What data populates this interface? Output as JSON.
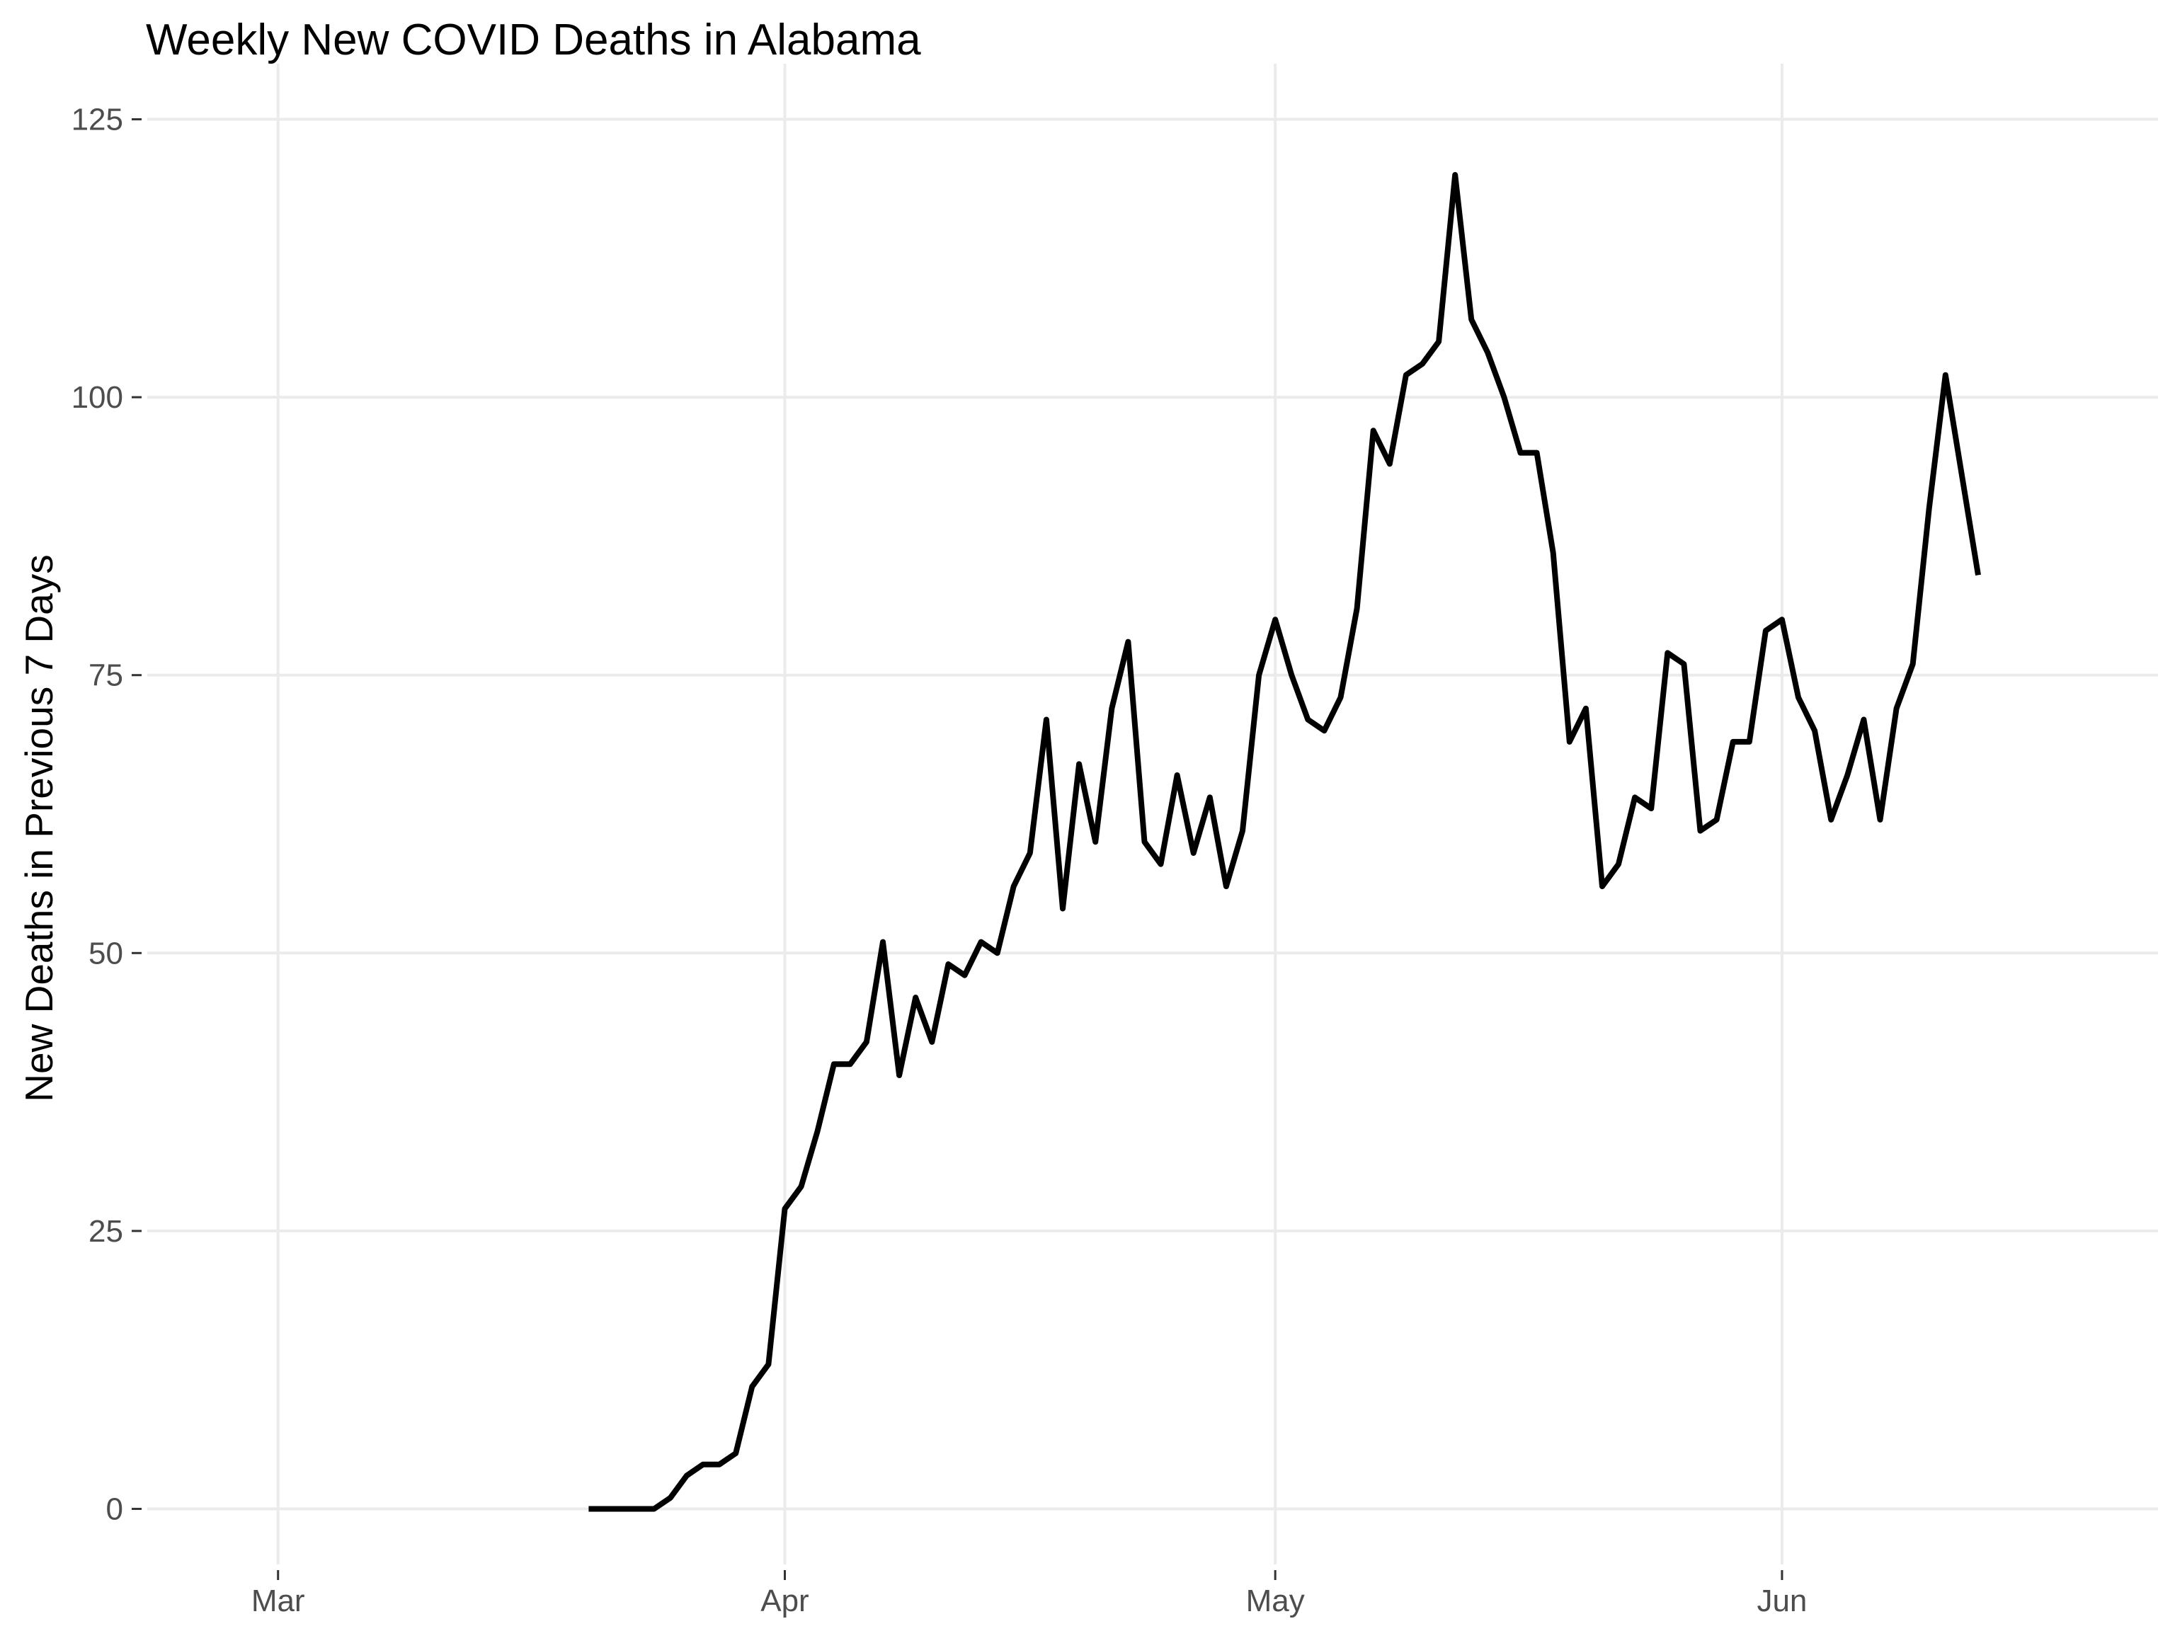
{
  "chart_data": {
    "type": "line",
    "title": "Weekly New COVID Deaths in Alabama",
    "xlabel": "",
    "ylabel": "New Deaths in Previous 7 Days",
    "x_axis_type": "date",
    "xlim": [
      "2020-02-22",
      "2020-06-24"
    ],
    "ylim": [
      -5,
      130
    ],
    "x_ticks": [
      {
        "date": "2020-03-01",
        "label": "Mar"
      },
      {
        "date": "2020-04-01",
        "label": "Apr"
      },
      {
        "date": "2020-05-01",
        "label": "May"
      },
      {
        "date": "2020-06-01",
        "label": "Jun"
      }
    ],
    "y_ticks": [
      0,
      25,
      50,
      75,
      100,
      125
    ],
    "grid": true,
    "legend": "none",
    "line_color": "#000000",
    "gridline_color": "#ebebeb",
    "series": [
      {
        "x": [
          "2020-03-20",
          "2020-03-21",
          "2020-03-22",
          "2020-03-23",
          "2020-03-24",
          "2020-03-25",
          "2020-03-26",
          "2020-03-27",
          "2020-03-28",
          "2020-03-29",
          "2020-03-30",
          "2020-03-31",
          "2020-04-01",
          "2020-04-02",
          "2020-04-03",
          "2020-04-04",
          "2020-04-05",
          "2020-04-06",
          "2020-04-07",
          "2020-04-08",
          "2020-04-09",
          "2020-04-10",
          "2020-04-11",
          "2020-04-12",
          "2020-04-13",
          "2020-04-14",
          "2020-04-15",
          "2020-04-16",
          "2020-04-17",
          "2020-04-18",
          "2020-04-19",
          "2020-04-20",
          "2020-04-21",
          "2020-04-22",
          "2020-04-23",
          "2020-04-24",
          "2020-04-25",
          "2020-04-26",
          "2020-04-27",
          "2020-04-28",
          "2020-04-29",
          "2020-04-30",
          "2020-05-01",
          "2020-05-02",
          "2020-05-03",
          "2020-05-04",
          "2020-05-05",
          "2020-05-06",
          "2020-05-07",
          "2020-05-08",
          "2020-05-09",
          "2020-05-10",
          "2020-05-11",
          "2020-05-12",
          "2020-05-13",
          "2020-05-14",
          "2020-05-15",
          "2020-05-16",
          "2020-05-17",
          "2020-05-18",
          "2020-05-19",
          "2020-05-20",
          "2020-05-21",
          "2020-05-22",
          "2020-05-23",
          "2020-05-24",
          "2020-05-25",
          "2020-05-26",
          "2020-05-27",
          "2020-05-28",
          "2020-05-29",
          "2020-05-30",
          "2020-05-31",
          "2020-06-01",
          "2020-06-02",
          "2020-06-03",
          "2020-06-04",
          "2020-06-05",
          "2020-06-06",
          "2020-06-07",
          "2020-06-08",
          "2020-06-09",
          "2020-06-10",
          "2020-06-11",
          "2020-06-12",
          "2020-06-13"
        ],
        "values": [
          0,
          0,
          0,
          0,
          0,
          1,
          3,
          4,
          4,
          5,
          11,
          13,
          27,
          29,
          34,
          40,
          40,
          42,
          51,
          39,
          46,
          42,
          49,
          48,
          51,
          50,
          56,
          59,
          71,
          54,
          67,
          60,
          72,
          78,
          60,
          58,
          66,
          59,
          64,
          56,
          61,
          75,
          80,
          75,
          71,
          70,
          73,
          81,
          97,
          94,
          102,
          103,
          105,
          120,
          107,
          104,
          100,
          95,
          95,
          86,
          69,
          72,
          56,
          58,
          64,
          63,
          77,
          76,
          61,
          62,
          69,
          69,
          79,
          80,
          73,
          70,
          62,
          66,
          71,
          62,
          72,
          76,
          90,
          102,
          93,
          84
        ]
      }
    ]
  }
}
